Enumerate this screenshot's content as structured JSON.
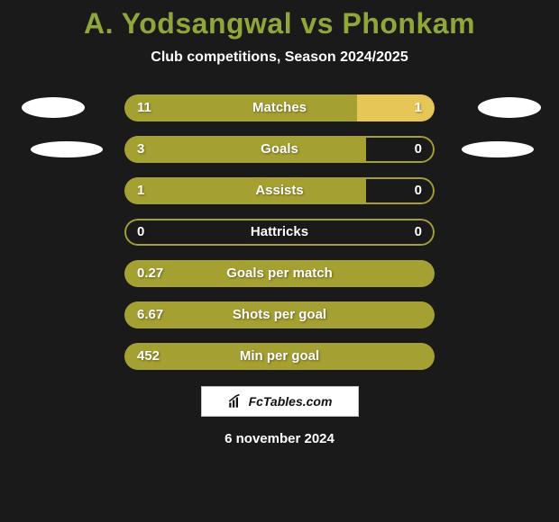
{
  "title_color": "#8fa63a",
  "title": "A. Yodsangwal vs Phonkam",
  "subtitle": "Club competitions, Season 2024/2025",
  "bubble_color": "#ffffff",
  "colors": {
    "left_fill": "#a5a032",
    "right_fill": "#e5c657",
    "border_darkL": "#a5a032",
    "border_darkR": "#e5c657"
  },
  "rows": [
    {
      "label": "Matches",
      "left": "11",
      "right": "1",
      "left_pct": 75,
      "right_pct": 25,
      "bubbles": true,
      "bubble_row": 1
    },
    {
      "label": "Goals",
      "left": "3",
      "right": "0",
      "left_pct": 78,
      "right_pct": 0,
      "bubbles": true,
      "bubble_row": 2
    },
    {
      "label": "Assists",
      "left": "1",
      "right": "0",
      "left_pct": 78,
      "right_pct": 0,
      "bubbles": false
    },
    {
      "label": "Hattricks",
      "left": "0",
      "right": "0",
      "left_pct": 0,
      "right_pct": 0,
      "bubbles": false
    },
    {
      "label": "Goals per match",
      "left": "0.27",
      "right": "",
      "left_pct": 100,
      "right_pct": 0,
      "bubbles": false,
      "outline_only_right": true
    },
    {
      "label": "Shots per goal",
      "left": "6.67",
      "right": "",
      "left_pct": 100,
      "right_pct": 0,
      "bubbles": false,
      "outline_only_right": true
    },
    {
      "label": "Min per goal",
      "left": "452",
      "right": "",
      "left_pct": 100,
      "right_pct": 0,
      "bubbles": false,
      "outline_only_right": true
    }
  ],
  "footer_brand": "FcTables.com",
  "date": "6 november 2024"
}
